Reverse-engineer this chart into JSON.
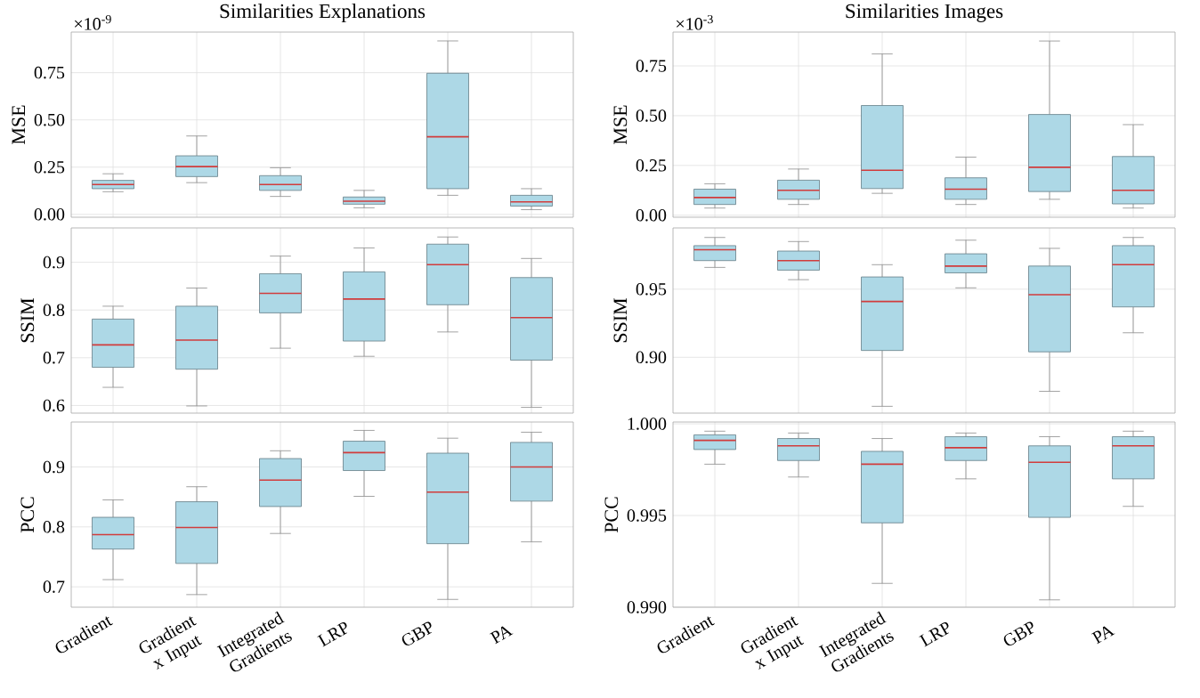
{
  "chart_data": [
    {
      "type": "box",
      "title": "Similarities Explanations",
      "ylabel": "MSE",
      "annotations": [
        "×10$^{-9}$"
      ],
      "categories": [
        null,
        null,
        null,
        null,
        null,
        null
      ],
      "ylim": [
        -0.015,
        0.965
      ],
      "yticks": [
        {
          "value": 0,
          "label": "0.00"
        },
        {
          "value": 0.25,
          "label": "0.25"
        },
        {
          "value": 0.5,
          "label": "0.50"
        },
        {
          "value": 0.75,
          "label": "0.75"
        }
      ],
      "grid": true,
      "tick_labels": "y",
      "series": [
        {
          "color": "#add8e6",
          "boxes": [
            {
              "low": 0.12,
              "q1": 0.136,
              "median": 0.158,
              "q3": 0.18,
              "high": 0.215
            },
            {
              "low": 0.168,
              "q1": 0.2,
              "median": 0.253,
              "q3": 0.31,
              "high": 0.415
            },
            {
              "low": 0.095,
              "q1": 0.127,
              "median": 0.158,
              "q3": 0.205,
              "high": 0.247
            },
            {
              "low": 0.035,
              "q1": 0.054,
              "median": 0.07,
              "q3": 0.092,
              "high": 0.127
            },
            {
              "low": 0.101,
              "q1": 0.136,
              "median": 0.411,
              "q3": 0.747,
              "high": 0.918
            },
            {
              "low": 0.025,
              "q1": 0.044,
              "median": 0.066,
              "q3": 0.101,
              "high": 0.136
            }
          ]
        }
      ]
    },
    {
      "type": "box",
      "title": "Similarities Images",
      "ylabel": "MSE",
      "annotations": [
        "×10$^{-3}$"
      ],
      "categories": [
        null,
        null,
        null,
        null,
        null,
        null
      ],
      "ylim": [
        -0.01,
        0.92
      ],
      "yticks": [
        {
          "value": 0,
          "label": "0.00"
        },
        {
          "value": 0.25,
          "label": "0.25"
        },
        {
          "value": 0.5,
          "label": "0.50"
        },
        {
          "value": 0.75,
          "label": "0.75"
        }
      ],
      "grid": true,
      "tick_labels": "y",
      "series": [
        {
          "color": "#add8e6",
          "boxes": [
            {
              "low": 0.036,
              "q1": 0.054,
              "median": 0.089,
              "q3": 0.131,
              "high": 0.158
            },
            {
              "low": 0.054,
              "q1": 0.08,
              "median": 0.125,
              "q3": 0.176,
              "high": 0.232
            },
            {
              "low": 0.11,
              "q1": 0.134,
              "median": 0.226,
              "q3": 0.551,
              "high": 0.81
            },
            {
              "low": 0.054,
              "q1": 0.08,
              "median": 0.131,
              "q3": 0.188,
              "high": 0.292
            },
            {
              "low": 0.08,
              "q1": 0.119,
              "median": 0.241,
              "q3": 0.506,
              "high": 0.875
            },
            {
              "low": 0.036,
              "q1": 0.057,
              "median": 0.125,
              "q3": 0.295,
              "high": 0.455
            }
          ]
        }
      ]
    },
    {
      "type": "box",
      "ylabel": "SSIM",
      "categories": [
        null,
        null,
        null,
        null,
        null,
        null
      ],
      "ylim": [
        0.584,
        0.972
      ],
      "yticks": [
        0.6,
        0.7,
        0.8,
        0.9
      ],
      "grid": true,
      "tick_labels": "y",
      "series": [
        {
          "color": "#add8e6",
          "boxes": [
            {
              "low": 0.638,
              "q1": 0.68,
              "median": 0.727,
              "q3": 0.781,
              "high": 0.808
            },
            {
              "low": 0.599,
              "q1": 0.676,
              "median": 0.737,
              "q3": 0.808,
              "high": 0.846
            },
            {
              "low": 0.72,
              "q1": 0.794,
              "median": 0.835,
              "q3": 0.876,
              "high": 0.913
            },
            {
              "low": 0.703,
              "q1": 0.735,
              "median": 0.823,
              "q3": 0.88,
              "high": 0.93
            },
            {
              "low": 0.754,
              "q1": 0.811,
              "median": 0.895,
              "q3": 0.938,
              "high": 0.953
            },
            {
              "low": 0.596,
              "q1": 0.695,
              "median": 0.784,
              "q3": 0.868,
              "high": 0.908
            }
          ]
        }
      ]
    },
    {
      "type": "box",
      "ylabel": "SSIM",
      "categories": [
        null,
        null,
        null,
        null,
        null,
        null
      ],
      "ylim": [
        0.859,
        0.995
      ],
      "yticks": [
        {
          "value": 0.9,
          "label": "0.90"
        },
        {
          "value": 0.95,
          "label": "0.95"
        }
      ],
      "grid": true,
      "tick_labels": "y",
      "series": [
        {
          "color": "#add8e6",
          "boxes": [
            {
              "low": 0.966,
              "q1": 0.971,
              "median": 0.979,
              "q3": 0.982,
              "high": 0.988
            },
            {
              "low": 0.957,
              "q1": 0.964,
              "median": 0.971,
              "q3": 0.978,
              "high": 0.985
            },
            {
              "low": 0.864,
              "q1": 0.905,
              "median": 0.941,
              "q3": 0.959,
              "high": 0.968
            },
            {
              "low": 0.951,
              "q1": 0.962,
              "median": 0.967,
              "q3": 0.976,
              "high": 0.986
            },
            {
              "low": 0.875,
              "q1": 0.904,
              "median": 0.946,
              "q3": 0.967,
              "high": 0.98
            },
            {
              "low": 0.918,
              "q1": 0.937,
              "median": 0.968,
              "q3": 0.982,
              "high": 0.988
            }
          ]
        }
      ]
    },
    {
      "type": "box",
      "ylabel": "PCC",
      "categories": [
        "Gradient",
        "Gradient x Input",
        "Integrated Gradients",
        "LRP",
        "GBP",
        "PA"
      ],
      "ylim": [
        0.666,
        0.975
      ],
      "yticks": [
        0.7,
        0.8,
        0.9
      ],
      "grid": true,
      "series": [
        {
          "color": "#add8e6",
          "boxes": [
            {
              "low": 0.712,
              "q1": 0.763,
              "median": 0.787,
              "q3": 0.816,
              "high": 0.845
            },
            {
              "low": 0.687,
              "q1": 0.739,
              "median": 0.799,
              "q3": 0.842,
              "high": 0.867
            },
            {
              "low": 0.789,
              "q1": 0.834,
              "median": 0.878,
              "q3": 0.914,
              "high": 0.927
            },
            {
              "low": 0.851,
              "q1": 0.894,
              "median": 0.924,
              "q3": 0.943,
              "high": 0.961
            },
            {
              "low": 0.679,
              "q1": 0.772,
              "median": 0.858,
              "q3": 0.923,
              "high": 0.948
            },
            {
              "low": 0.775,
              "q1": 0.843,
              "median": 0.9,
              "q3": 0.941,
              "high": 0.958
            }
          ]
        }
      ]
    },
    {
      "type": "box",
      "ylabel": "PCC",
      "categories": [
        "Gradient",
        "Gradient x Input",
        "Integrated Gradients",
        "LRP",
        "GBP",
        "PA"
      ],
      "ylim": [
        0.99,
        1.0001
      ],
      "yticks": [
        {
          "value": 0.99,
          "label": "0.990"
        },
        {
          "value": 0.995,
          "label": "0.995"
        },
        {
          "value": 1.0,
          "label": "1.000"
        }
      ],
      "grid": true,
      "series": [
        {
          "color": "#add8e6",
          "boxes": [
            {
              "low": 0.9978,
              "q1": 0.9986,
              "median": 0.9991,
              "q3": 0.9994,
              "high": 0.9996
            },
            {
              "low": 0.9971,
              "q1": 0.998,
              "median": 0.9988,
              "q3": 0.9992,
              "high": 0.9995
            },
            {
              "low": 0.9913,
              "q1": 0.9946,
              "median": 0.9978,
              "q3": 0.9985,
              "high": 0.9992
            },
            {
              "low": 0.997,
              "q1": 0.998,
              "median": 0.9987,
              "q3": 0.9993,
              "high": 0.9995
            },
            {
              "low": 0.9904,
              "q1": 0.9949,
              "median": 0.9979,
              "q3": 0.9988,
              "high": 0.9993
            },
            {
              "low": 0.9955,
              "q1": 0.997,
              "median": 0.9988,
              "q3": 0.9993,
              "high": 0.9996
            }
          ]
        }
      ]
    }
  ]
}
